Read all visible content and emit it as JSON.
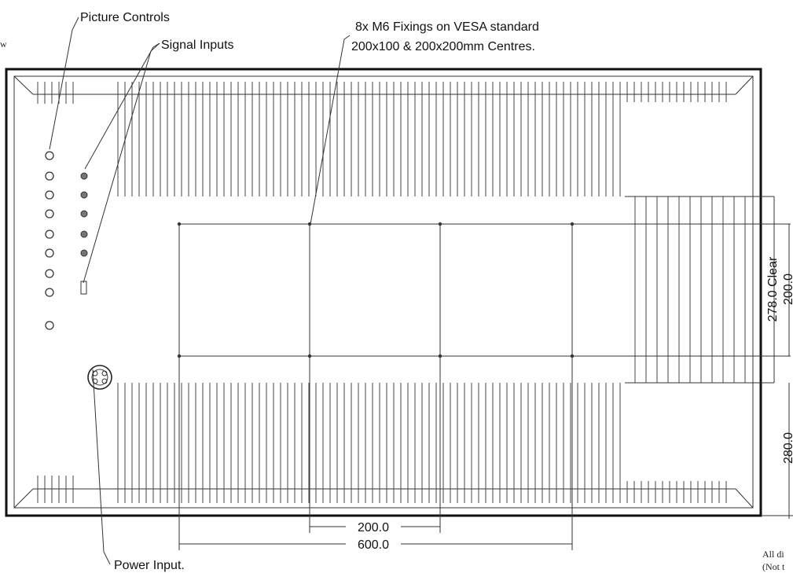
{
  "labels": {
    "picture_controls": "Picture Controls",
    "signal_inputs": "Signal Inputs",
    "fixings_line1": "8x M6 Fixings on VESA standard",
    "fixings_line2": "200x100 & 200x200mm Centres.",
    "power_input": "Power Input.",
    "view_fragment": "w",
    "note_fragment_1": "All di",
    "note_fragment_2": "(Not t"
  },
  "dimensions": {
    "inner_spacing": "200.0",
    "overall_width": "600.0",
    "clear_height": "278.0 Clear",
    "vesa_height": "200.0",
    "partial_height": "280.0"
  },
  "controls": {
    "picture_control_count": 9,
    "signal_input_count": 5
  }
}
